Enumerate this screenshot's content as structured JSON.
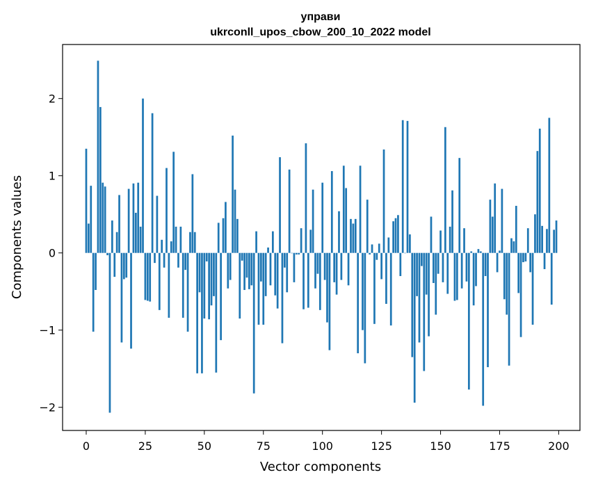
{
  "chart_data": {
    "type": "bar",
    "title": "управи",
    "subtitle": "ukrconll_upos_cbow_200_10_2022 model",
    "xlabel": "Vector components",
    "ylabel": "Components values",
    "xlim": [
      -10,
      209
    ],
    "ylim": [
      -2.3,
      2.7
    ],
    "xticks": [
      0,
      25,
      50,
      75,
      100,
      125,
      150,
      175,
      200
    ],
    "yticks": [
      -2,
      -1,
      0,
      1,
      2
    ],
    "ytick_labels": [
      "−2",
      "−1",
      "0",
      "1",
      "2"
    ],
    "bar_color": "#1f77b4",
    "grid": false,
    "values": [
      1.35,
      0.38,
      0.87,
      -1.02,
      -0.48,
      2.49,
      1.89,
      0.91,
      0.86,
      -0.03,
      -2.07,
      0.42,
      -0.31,
      0.27,
      0.75,
      -1.16,
      -0.34,
      -0.32,
      0.83,
      -1.24,
      0.9,
      0.52,
      0.91,
      0.34,
      2.0,
      -0.61,
      -0.62,
      -0.63,
      1.81,
      -0.13,
      0.74,
      -0.74,
      0.17,
      -0.19,
      1.1,
      -0.84,
      0.15,
      1.31,
      0.34,
      -0.19,
      0.34,
      -0.84,
      -0.22,
      -1.02,
      0.27,
      1.02,
      0.27,
      -1.56,
      -0.51,
      -1.56,
      -0.85,
      -0.11,
      -0.86,
      -0.68,
      -0.56,
      -1.55,
      0.39,
      -1.13,
      0.45,
      0.66,
      -0.46,
      -0.35,
      1.52,
      0.82,
      0.44,
      -0.85,
      -0.1,
      -0.48,
      -0.32,
      -0.47,
      -0.42,
      -1.82,
      0.28,
      -0.93,
      -0.37,
      -0.93,
      -0.56,
      0.07,
      -0.42,
      0.28,
      -0.55,
      -0.72,
      1.24,
      -1.17,
      -0.19,
      -0.51,
      1.08,
      0.0,
      -0.38,
      -0.02,
      -0.02,
      0.32,
      -0.73,
      1.42,
      -0.71,
      0.3,
      0.82,
      -0.46,
      -0.27,
      -0.74,
      0.91,
      -0.35,
      -0.9,
      -1.26,
      1.06,
      -0.38,
      -0.54,
      0.54,
      -0.35,
      1.13,
      0.84,
      -0.42,
      0.44,
      0.38,
      0.44,
      -1.3,
      1.13,
      -1.0,
      -1.43,
      0.69,
      -0.02,
      0.11,
      -0.92,
      -0.09,
      0.12,
      -0.34,
      1.34,
      -0.66,
      0.2,
      -0.94,
      0.41,
      0.45,
      0.49,
      -0.3,
      1.72,
      0.0,
      1.71,
      0.24,
      -1.35,
      -1.94,
      -0.56,
      -1.16,
      -0.17,
      -1.53,
      -0.54,
      -1.08,
      0.47,
      -0.39,
      -0.8,
      -0.27,
      0.29,
      -0.38,
      1.63,
      -0.53,
      0.34,
      0.81,
      -0.62,
      -0.61,
      1.23,
      -0.46,
      0.32,
      -0.37,
      -1.77,
      0.02,
      -0.68,
      -0.43,
      0.05,
      0.02,
      -1.98,
      -0.3,
      -1.48,
      0.69,
      0.47,
      0.9,
      -0.25,
      0.03,
      0.83,
      -0.6,
      -0.8,
      -1.46,
      0.19,
      0.15,
      0.61,
      -0.52,
      -1.09,
      -0.12,
      -0.11,
      0.32,
      -0.25,
      -0.93,
      0.5,
      1.32,
      1.61,
      0.35,
      -0.21,
      0.31,
      1.75,
      -0.67,
      0.3,
      0.42
    ]
  }
}
